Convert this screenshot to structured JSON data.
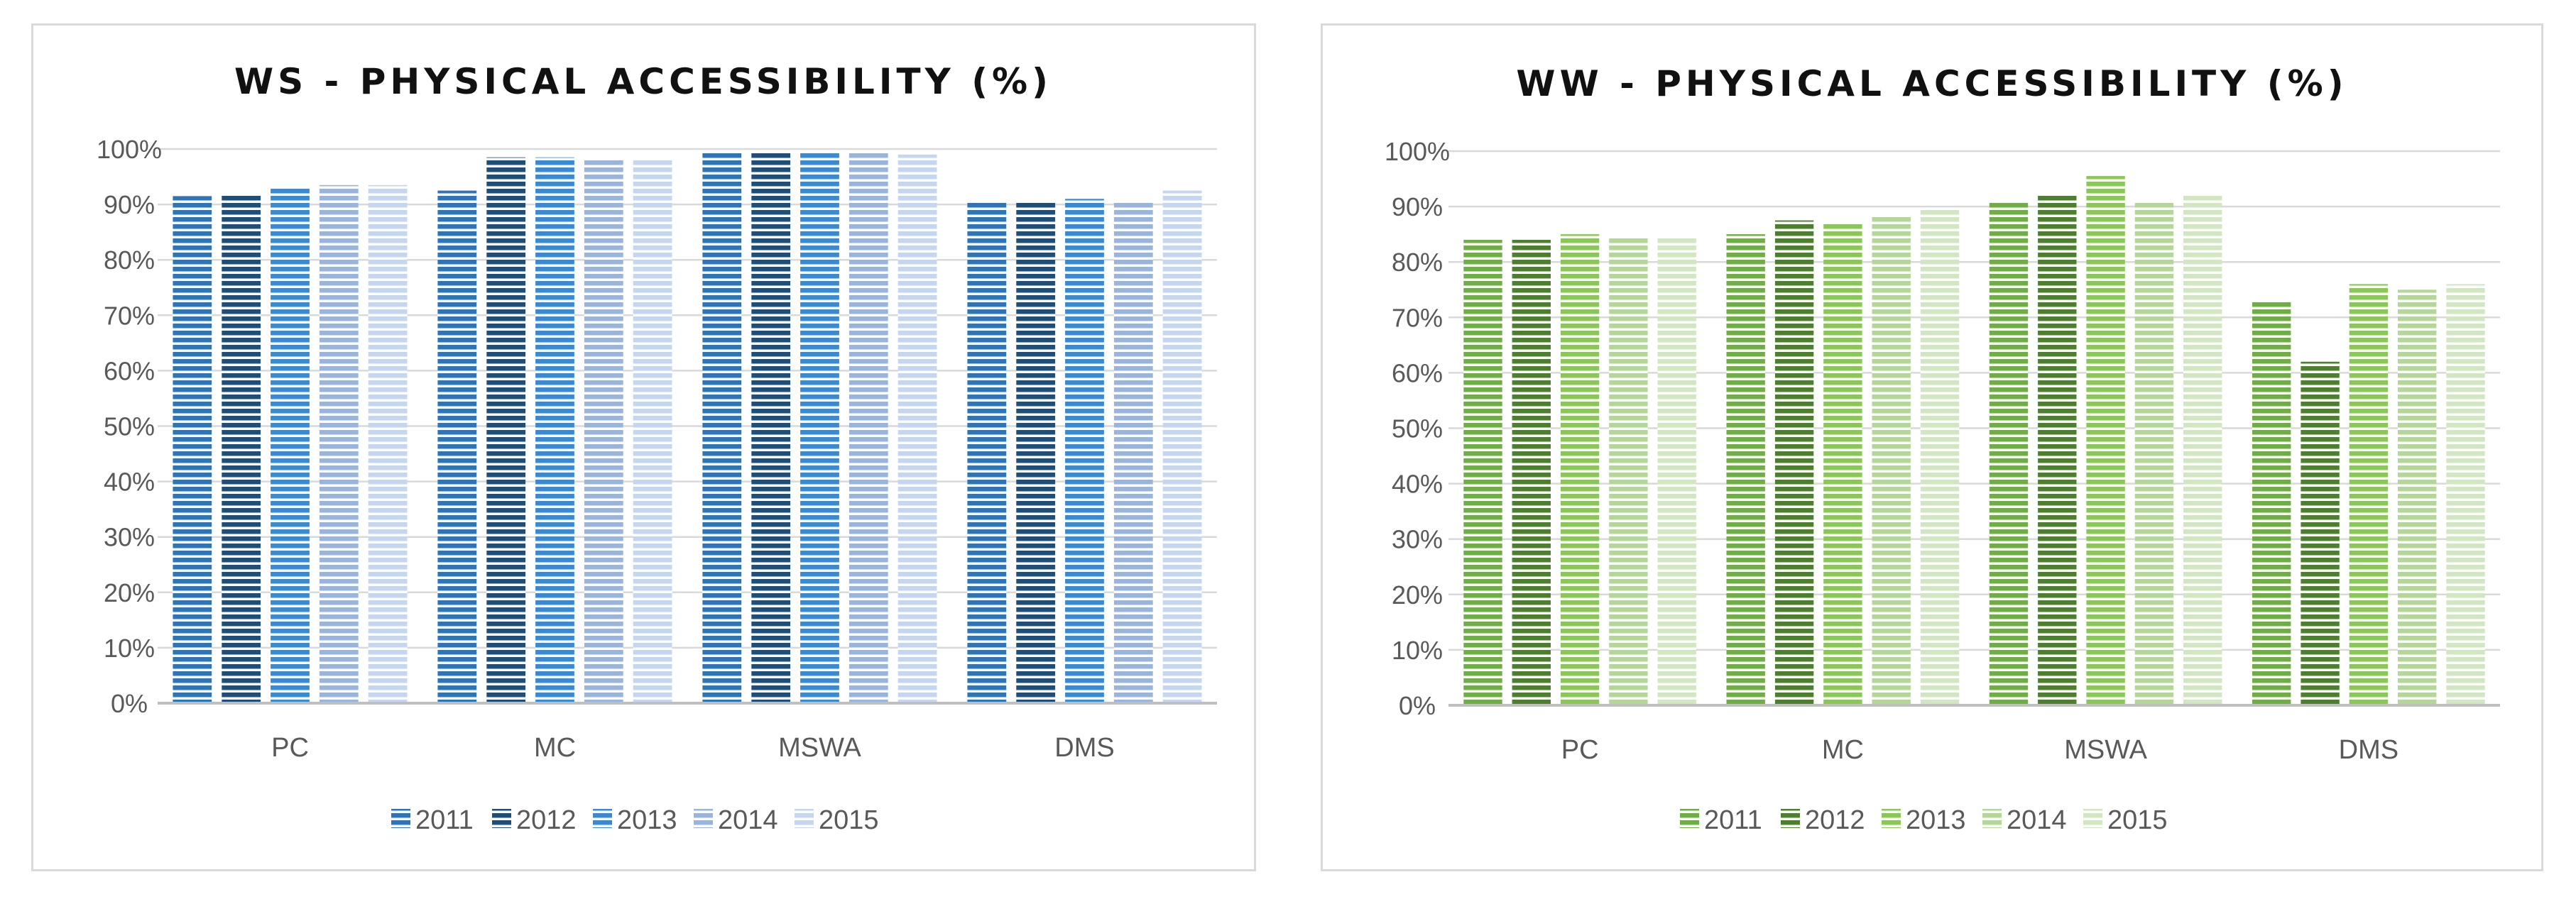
{
  "chart_data": [
    {
      "type": "bar",
      "title": "WS - PHYSICAL ACCESSIBILITY (%)",
      "xlabel": "",
      "ylabel": "",
      "ylim": [
        0,
        100
      ],
      "yticks": [
        "0%",
        "10%",
        "20%",
        "30%",
        "40%",
        "50%",
        "60%",
        "70%",
        "80%",
        "90%",
        "100%"
      ],
      "categories": [
        "PC",
        "MC",
        "MSWA",
        "DMS"
      ],
      "series": [
        {
          "name": "2011",
          "color": "#2e75b6",
          "values": [
            91.5,
            92.5,
            99.5,
            90.5
          ]
        },
        {
          "name": "2012",
          "color": "#1f4e79",
          "values": [
            92.0,
            98.5,
            99.5,
            90.5
          ]
        },
        {
          "name": "2013",
          "color": "#3a8ad2",
          "values": [
            93.0,
            98.5,
            99.5,
            91.0
          ]
        },
        {
          "name": "2014",
          "color": "#9ab4da",
          "values": [
            93.5,
            98.0,
            99.5,
            90.5
          ]
        },
        {
          "name": "2015",
          "color": "#c5d6ee",
          "values": [
            93.5,
            98.0,
            99.0,
            92.5
          ]
        }
      ],
      "legend": "bottom",
      "grid": true
    },
    {
      "type": "bar",
      "title": "WW - PHYSICAL ACCESSIBILITY (%)",
      "xlabel": "",
      "ylabel": "",
      "ylim": [
        0,
        100
      ],
      "yticks": [
        "0%",
        "10%",
        "20%",
        "30%",
        "40%",
        "50%",
        "60%",
        "70%",
        "80%",
        "90%",
        "100%"
      ],
      "categories": [
        "PC",
        "MC",
        "MSWA",
        "DMS"
      ],
      "series": [
        {
          "name": "2011",
          "color": "#70ad47",
          "values": [
            84.0,
            85.0,
            91.0,
            73.0
          ]
        },
        {
          "name": "2012",
          "color": "#4e7f31",
          "values": [
            84.0,
            87.5,
            92.0,
            62.0
          ]
        },
        {
          "name": "2013",
          "color": "#8cc558",
          "values": [
            85.0,
            87.0,
            95.5,
            76.0
          ]
        },
        {
          "name": "2014",
          "color": "#b5d69b",
          "values": [
            84.5,
            88.5,
            91.0,
            75.0
          ]
        },
        {
          "name": "2015",
          "color": "#d2e6c3",
          "values": [
            84.5,
            89.5,
            92.0,
            76.0
          ]
        }
      ],
      "legend": "bottom",
      "grid": true
    }
  ]
}
